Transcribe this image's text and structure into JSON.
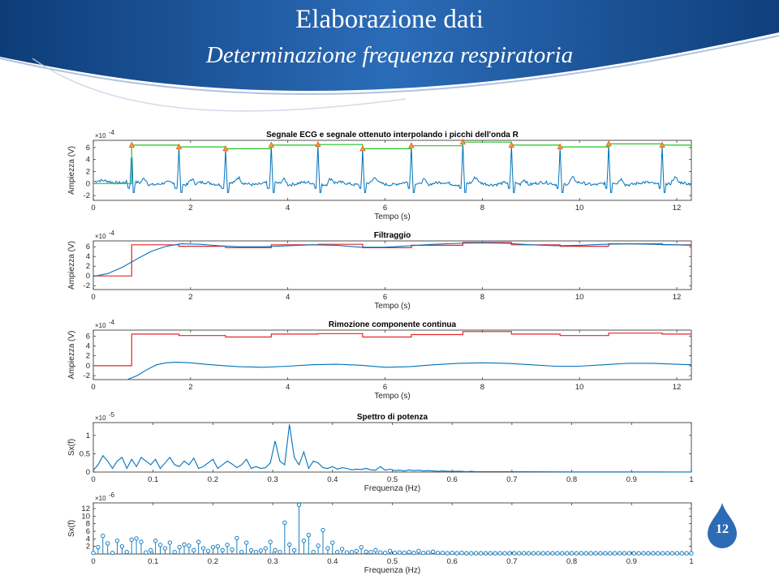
{
  "slide": {
    "title": "Elaborazione dati",
    "subtitle": "Determinazione frequenza respiratoria",
    "page_number": "12",
    "colors": {
      "banner_dark": "#0d3c78",
      "banner_light": "#2b6cb8",
      "badge": "#2d6bb5"
    }
  },
  "chart_data": [
    {
      "type": "line",
      "title": "Segnale ECG e segnale ottenuto interpolando i picchi dell'onda R",
      "xlabel": "Tempo (s)",
      "ylabel": "Ampiezza (V)",
      "multiplier": "-4",
      "xlim": [
        0,
        12.3
      ],
      "ylim": [
        -2.8,
        7.2
      ],
      "xticks": [
        "0",
        "2",
        "4",
        "6",
        "8",
        "10",
        "12"
      ],
      "yticks": [
        "-2",
        "0",
        "2",
        "4",
        "6"
      ],
      "series": [
        {
          "color": "#0072bd",
          "style": "ecg",
          "peaks_t": [
            0.79,
            1.76,
            2.72,
            3.66,
            4.62,
            5.54,
            6.54,
            7.6,
            8.6,
            9.6,
            10.6,
            11.7
          ],
          "peaks_v": [
            6.4,
            6.1,
            5.8,
            6.4,
            6.5,
            5.8,
            6.3,
            6.9,
            6.4,
            6.1,
            6.6,
            6.4
          ]
        },
        {
          "color": "#22c522",
          "style": "step",
          "x": [
            0,
            0.79,
            1.76,
            2.72,
            3.66,
            4.62,
            5.54,
            6.54,
            7.6,
            8.6,
            9.6,
            10.6,
            11.7,
            12.3
          ],
          "y": [
            0,
            6.4,
            6.1,
            5.8,
            6.4,
            6.5,
            5.8,
            6.3,
            6.9,
            6.4,
            6.1,
            6.6,
            6.4,
            6.4
          ]
        },
        {
          "color": "#e05a1a",
          "style": "markers",
          "x": [
            0.79,
            1.76,
            2.72,
            3.66,
            4.62,
            5.54,
            6.54,
            7.6,
            8.6,
            9.6,
            10.6,
            11.7
          ],
          "y": [
            6.4,
            6.1,
            5.8,
            6.4,
            6.5,
            5.8,
            6.3,
            6.9,
            6.4,
            6.1,
            6.6,
            6.4
          ]
        }
      ]
    },
    {
      "type": "line",
      "title": "Filtraggio",
      "xlabel": "Tempo (s)",
      "ylabel": "Ampiezza (V)",
      "multiplier": "-4",
      "xlim": [
        0,
        12.3
      ],
      "ylim": [
        -2.8,
        7.2
      ],
      "xticks": [
        "0",
        "2",
        "4",
        "6",
        "8",
        "10",
        "12"
      ],
      "yticks": [
        "-2",
        "0",
        "2",
        "4",
        "6"
      ],
      "series": [
        {
          "color": "#e3262a",
          "style": "step",
          "x": [
            0,
            0.79,
            1.76,
            2.72,
            3.66,
            4.62,
            5.54,
            6.54,
            7.6,
            8.6,
            9.6,
            10.6,
            11.7,
            12.3
          ],
          "y": [
            0,
            6.4,
            6.1,
            5.8,
            6.4,
            6.5,
            5.8,
            6.3,
            6.9,
            6.4,
            6.1,
            6.6,
            6.4,
            6.4
          ]
        },
        {
          "color": "#0072bd",
          "style": "line",
          "x": [
            0,
            0.3,
            0.6,
            0.9,
            1.2,
            1.5,
            1.8,
            2.2,
            2.6,
            3.0,
            3.5,
            4.0,
            4.5,
            5.0,
            5.5,
            6.0,
            6.5,
            7.0,
            7.5,
            8.0,
            8.5,
            9.0,
            9.5,
            10.0,
            10.5,
            11.0,
            11.5,
            12.0,
            12.3
          ],
          "y": [
            -0.1,
            0.5,
            1.8,
            3.5,
            5.1,
            6.1,
            6.6,
            6.5,
            6.2,
            6.0,
            6.0,
            6.2,
            6.4,
            6.3,
            5.9,
            5.9,
            6.2,
            6.5,
            6.7,
            6.8,
            6.7,
            6.4,
            6.2,
            6.3,
            6.5,
            6.6,
            6.5,
            6.4,
            6.3
          ]
        }
      ]
    },
    {
      "type": "line",
      "title": "Rimozione componente continua",
      "xlabel": "Tempo (s)",
      "ylabel": "Ampiezza (V)",
      "multiplier": "-4",
      "xlim": [
        0,
        12.3
      ],
      "ylim": [
        -2.8,
        7.2
      ],
      "xticks": [
        "0",
        "2",
        "4",
        "6",
        "8",
        "10",
        "12"
      ],
      "yticks": [
        "-2",
        "0",
        "2",
        "4",
        "6"
      ],
      "series": [
        {
          "color": "#e3262a",
          "style": "step",
          "x": [
            0,
            0.79,
            1.76,
            2.72,
            3.66,
            4.62,
            5.54,
            6.54,
            7.6,
            8.6,
            9.6,
            10.6,
            11.7,
            12.3
          ],
          "y": [
            0,
            6.4,
            6.1,
            5.8,
            6.4,
            6.5,
            5.8,
            6.3,
            6.9,
            6.4,
            6.1,
            6.6,
            6.4,
            6.4
          ]
        },
        {
          "color": "#0072bd",
          "style": "line",
          "x": [
            0.7,
            0.9,
            1.1,
            1.3,
            1.5,
            1.7,
            2.0,
            2.3,
            2.7,
            3.0,
            3.5,
            4.0,
            4.5,
            5.0,
            5.5,
            6.0,
            6.5,
            7.0,
            7.5,
            8.0,
            8.5,
            9.0,
            9.5,
            10.0,
            10.5,
            11.0,
            11.5,
            12.0,
            12.3
          ],
          "y": [
            -2.8,
            -2.0,
            -0.8,
            0.2,
            0.6,
            0.7,
            0.6,
            0.3,
            0.0,
            -0.2,
            -0.3,
            -0.1,
            0.2,
            0.3,
            0.1,
            -0.3,
            -0.2,
            0.2,
            0.5,
            0.6,
            0.5,
            0.2,
            -0.1,
            -0.1,
            0.2,
            0.5,
            0.5,
            0.3,
            0.2
          ]
        }
      ]
    },
    {
      "type": "line",
      "title": "Spettro di potenza",
      "xlabel": "Frequenza (Hz)",
      "ylabel": "Sx(f)",
      "multiplier": "-5",
      "xlim": [
        0,
        1
      ],
      "ylim": [
        0,
        1.35
      ],
      "xticks": [
        "0",
        "0.1",
        "0.2",
        "0.3",
        "0.4",
        "0.5",
        "0.6",
        "0.7",
        "0.8",
        "0.9",
        "1"
      ],
      "yticks": [
        "0",
        "0.5",
        "1"
      ],
      "series": [
        {
          "color": "#0072bd",
          "style": "line",
          "x": [
            0,
            0.008,
            0.016,
            0.024,
            0.032,
            0.04,
            0.048,
            0.056,
            0.064,
            0.072,
            0.08,
            0.088,
            0.096,
            0.104,
            0.112,
            0.12,
            0.128,
            0.136,
            0.144,
            0.152,
            0.16,
            0.168,
            0.176,
            0.184,
            0.192,
            0.2,
            0.208,
            0.216,
            0.224,
            0.232,
            0.24,
            0.248,
            0.256,
            0.264,
            0.272,
            0.28,
            0.288,
            0.296,
            0.304,
            0.312,
            0.32,
            0.328,
            0.336,
            0.344,
            0.352,
            0.36,
            0.368,
            0.376,
            0.384,
            0.392,
            0.4,
            0.408,
            0.416,
            0.424,
            0.432,
            0.44,
            0.448,
            0.456,
            0.464,
            0.472,
            0.48,
            0.488,
            0.496,
            0.504,
            0.512,
            0.52,
            0.528,
            0.536,
            0.544,
            0.552,
            0.56,
            0.568,
            0.576,
            0.584,
            0.592,
            0.6,
            0.608,
            0.616,
            0.624,
            0.632,
            0.64,
            0.7,
            0.8,
            0.9,
            1.0
          ],
          "y": [
            0.05,
            0.2,
            0.45,
            0.3,
            0.1,
            0.3,
            0.4,
            0.1,
            0.35,
            0.15,
            0.4,
            0.3,
            0.2,
            0.35,
            0.1,
            0.25,
            0.4,
            0.2,
            0.15,
            0.3,
            0.2,
            0.38,
            0.1,
            0.15,
            0.25,
            0.35,
            0.1,
            0.2,
            0.3,
            0.22,
            0.12,
            0.2,
            0.35,
            0.1,
            0.15,
            0.1,
            0.12,
            0.25,
            0.85,
            0.3,
            0.2,
            1.3,
            0.4,
            0.2,
            0.55,
            0.1,
            0.3,
            0.25,
            0.12,
            0.1,
            0.15,
            0.08,
            0.12,
            0.1,
            0.06,
            0.08,
            0.07,
            0.1,
            0.06,
            0.05,
            0.15,
            0.05,
            0.08,
            0.04,
            0.05,
            0.03,
            0.06,
            0.04,
            0.05,
            0.03,
            0.04,
            0.03,
            0.02,
            0.03,
            0.02,
            0.02,
            0.02,
            0.02,
            0.01,
            0.02,
            0.01,
            0.01,
            0.005,
            0.004,
            0.003
          ]
        }
      ]
    },
    {
      "type": "stem",
      "xlabel": "Frequenza (Hz)",
      "ylabel": "Sx(f)",
      "multiplier": "-6",
      "xlim": [
        0,
        1
      ],
      "ylim": [
        0,
        13.5
      ],
      "xticks": [
        "0",
        "0.1",
        "0.2",
        "0.3",
        "0.4",
        "0.5",
        "0.6",
        "0.7",
        "0.8",
        "0.9",
        "1"
      ],
      "yticks": [
        "2",
        "4",
        "6",
        "8",
        "10",
        "12"
      ],
      "series": [
        {
          "color": "#0072bd",
          "style": "stem",
          "x": [
            0,
            0.008,
            0.016,
            0.024,
            0.032,
            0.04,
            0.048,
            0.056,
            0.064,
            0.072,
            0.08,
            0.088,
            0.096,
            0.104,
            0.112,
            0.12,
            0.128,
            0.136,
            0.144,
            0.152,
            0.16,
            0.168,
            0.176,
            0.184,
            0.192,
            0.2,
            0.208,
            0.216,
            0.224,
            0.232,
            0.24,
            0.248,
            0.256,
            0.264,
            0.272,
            0.28,
            0.288,
            0.296,
            0.304,
            0.312,
            0.32,
            0.328,
            0.336,
            0.344,
            0.352,
            0.36,
            0.368,
            0.376,
            0.384,
            0.392,
            0.4,
            0.408,
            0.416,
            0.424,
            0.432,
            0.44,
            0.448,
            0.456,
            0.464,
            0.472,
            0.48,
            0.488,
            0.496,
            0.504,
            0.512,
            0.52,
            0.528,
            0.536,
            0.544,
            0.552,
            0.56,
            0.568,
            0.576,
            0.584,
            0.592,
            0.6,
            0.608,
            0.616,
            0.624,
            0.632,
            0.64,
            0.648,
            0.656,
            0.664,
            0.672,
            0.68,
            0.688,
            0.696,
            0.704,
            0.712,
            0.72,
            0.728,
            0.736,
            0.744,
            0.752,
            0.76,
            0.768,
            0.776,
            0.784,
            0.792,
            0.8,
            0.808,
            0.816,
            0.824,
            0.832,
            0.84,
            0.848,
            0.856,
            0.864,
            0.872,
            0.88,
            0.888,
            0.896,
            0.904,
            0.912,
            0.92,
            0.928,
            0.936,
            0.944,
            0.952,
            0.96,
            0.968,
            0.976,
            0.984,
            0.992,
            1.0
          ],
          "y": [
            0.3,
            1.8,
            4.8,
            2.8,
            0.3,
            3.5,
            2.0,
            0.5,
            3.8,
            4.1,
            3.2,
            0.4,
            1.0,
            3.5,
            2.4,
            1.5,
            3.0,
            0.5,
            1.8,
            2.5,
            2.2,
            1.0,
            3.2,
            1.5,
            0.8,
            1.8,
            2.0,
            1.0,
            2.4,
            1.2,
            4.2,
            0.5,
            3.0,
            1.0,
            0.5,
            0.9,
            1.5,
            3.2,
            1.0,
            0.5,
            8.3,
            2.5,
            1.0,
            13.0,
            3.5,
            5.0,
            0.5,
            2.2,
            6.3,
            1.5,
            3.0,
            0.5,
            1.3,
            0.4,
            0.5,
            0.8,
            1.8,
            0.6,
            0.5,
            1.0,
            0.4,
            0.3,
            0.8,
            0.3,
            0.4,
            0.3,
            0.5,
            0.3,
            0.8,
            0.3,
            0.4,
            0.6,
            0.3,
            0.3,
            0.2,
            0.3,
            0.2,
            0.3,
            0.2,
            0.2,
            0.2,
            0.2,
            0.2,
            0.2,
            0.2,
            0.2,
            0.2,
            0.2,
            0.2,
            0.2,
            0.2,
            0.2,
            0.2,
            0.2,
            0.2,
            0.2,
            0.2,
            0.2,
            0.2,
            0.2,
            0.2,
            0.2,
            0.2,
            0.2,
            0.2,
            0.2,
            0.2,
            0.2,
            0.2,
            0.2,
            0.2,
            0.2,
            0.2,
            0.2,
            0.2,
            0.2,
            0.2,
            0.2,
            0.2,
            0.2,
            0.2,
            0.2,
            0.2,
            0.2,
            0.2,
            0.2
          ]
        }
      ]
    }
  ]
}
